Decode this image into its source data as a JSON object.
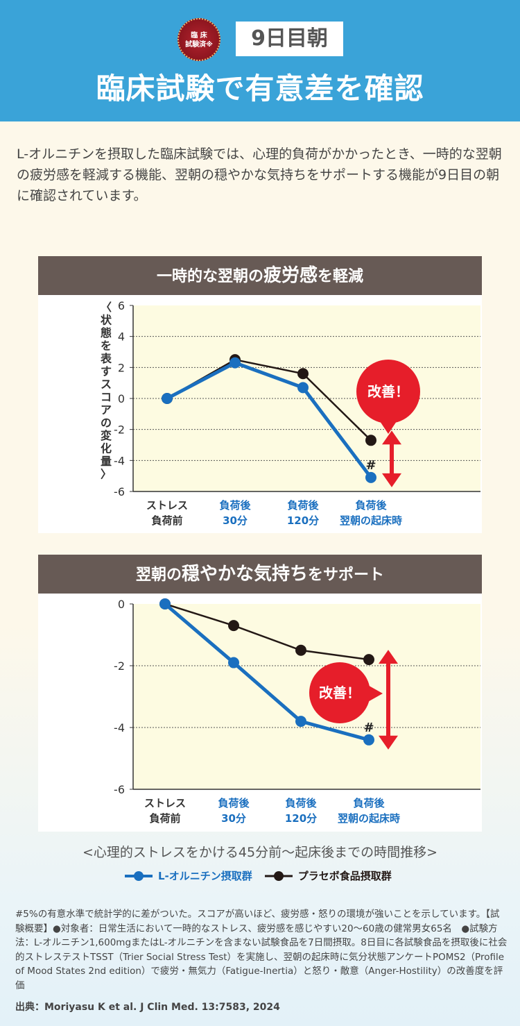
{
  "header": {
    "badge_line1": "臨 床",
    "badge_line2": "試験済※",
    "day": "9日目朝",
    "title": "臨床試験で有意差を確認"
  },
  "intro": "L-オルニチンを摂取した臨床試験では、心理的負荷がかかったとき、一時的な翌朝の疲労感を軽減する機能、翌朝の穏やかな気持ちをサポートする機能が9日目の朝に確認されています。",
  "colors": {
    "ornithine": "#1a6fbf",
    "placebo": "#231815",
    "improve": "#e61e2a",
    "plotbg": "#fdfbe1"
  },
  "chart_data": [
    {
      "type": "line",
      "title_a": "一時的な翌朝の",
      "title_b": "疲労感",
      "title_c": "を軽減",
      "ylabel": "〈状態を表すスコアの変化量〉",
      "ylim": [
        -6,
        6
      ],
      "yticks": [
        6,
        4,
        2,
        0,
        -2,
        -4,
        -6
      ],
      "categories": [
        [
          "ストレス",
          "負荷前"
        ],
        [
          "負荷後",
          "30分"
        ],
        [
          "負荷後",
          "120分"
        ],
        [
          "負荷後",
          "翌朝の起床時"
        ]
      ],
      "series": [
        {
          "name": "L-オルニチン摂取群",
          "values": [
            0,
            2.3,
            0.7,
            -5.1
          ]
        },
        {
          "name": "プラセボ食品摂取群",
          "values": [
            0,
            2.5,
            1.6,
            -2.7
          ]
        }
      ],
      "annotation": "改善！",
      "mark": "#"
    },
    {
      "type": "line",
      "title_a": "翌朝の",
      "title_b": "穏やかな気持ち",
      "title_c": "をサポート",
      "ylabel": "",
      "ylim": [
        -6,
        0
      ],
      "yticks": [
        0,
        -2,
        -4,
        -6
      ],
      "categories": [
        [
          "ストレス",
          "負荷前"
        ],
        [
          "負荷後",
          "30分"
        ],
        [
          "負荷後",
          "120分"
        ],
        [
          "負荷後",
          "翌朝の起床時"
        ]
      ],
      "series": [
        {
          "name": "L-オルニチン摂取群",
          "values": [
            0,
            -1.9,
            -3.8,
            -4.4
          ]
        },
        {
          "name": "プラセボ食品摂取群",
          "values": [
            0,
            -0.7,
            -1.5,
            -1.8
          ]
        }
      ],
      "annotation": "改善！",
      "mark": "#"
    }
  ],
  "legend": {
    "caption": "<心理的ストレスをかける45分前～起床後までの時間推移>",
    "ornithine": "L-オルニチン摂取群",
    "placebo": "プラセボ食品摂取群"
  },
  "notes": "#5%の有意水準で統計学的に差がついた。スコアが高いほど、疲労感・怒りの環境が強いことを示しています。【試験概要】●対象者：日常生活において一時的なストレス、疲労感を感じやすい20～60歳の健常男女65名　●試験方法：L-オルニチン1,600mgまたはL-オルニチンを含まない試験食品を7日間摂取。8日目に各試験食品を摂取後に社会的ストレステストTSST（Trier Social Stress Test）を実施し、翌朝の起床時に気分状態アンケートPOMS2（Profile of Mood States 2nd edition）で疲労・無気力（Fatigue-Inertia）と怒り・敵意（Anger-Hostility）の改善度を評価",
  "source": "出典：Moriyasu K et al. J Clin Med. 13:7583, 2024"
}
